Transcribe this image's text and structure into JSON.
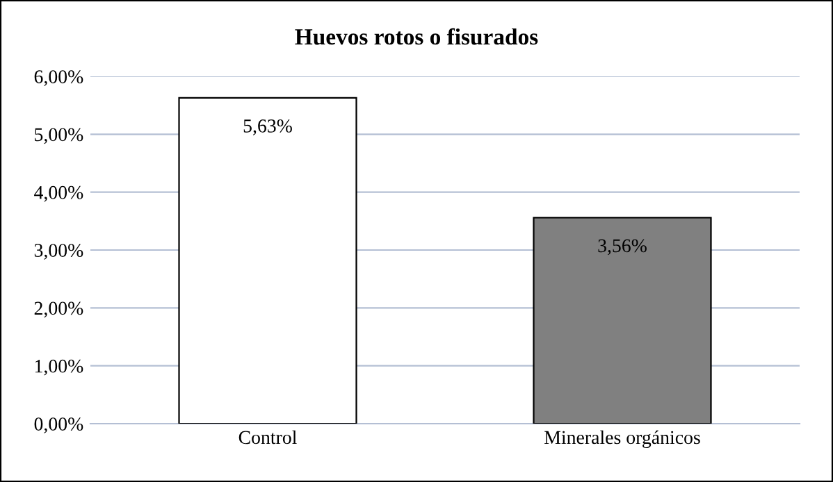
{
  "chart_data": {
    "type": "bar",
    "title": "Huevos rotos o fisurados",
    "categories": [
      "Control",
      "Minerales orgánicos"
    ],
    "values": [
      5.63,
      3.56
    ],
    "colors": [
      "#ffffff",
      "#808080"
    ],
    "value_labels": [
      "5,63%",
      "3,56%"
    ],
    "ylim": [
      0,
      6
    ],
    "yticks": [
      {
        "value": 0,
        "label": "0,00%"
      },
      {
        "value": 1,
        "label": "1,00%"
      },
      {
        "value": 2,
        "label": "2,00%"
      },
      {
        "value": 3,
        "label": "3,00%"
      },
      {
        "value": 4,
        "label": "4,00%"
      },
      {
        "value": 5,
        "label": "5,00%"
      },
      {
        "value": 6,
        "label": "6,00%"
      }
    ],
    "grid": "y",
    "legend": false
  }
}
